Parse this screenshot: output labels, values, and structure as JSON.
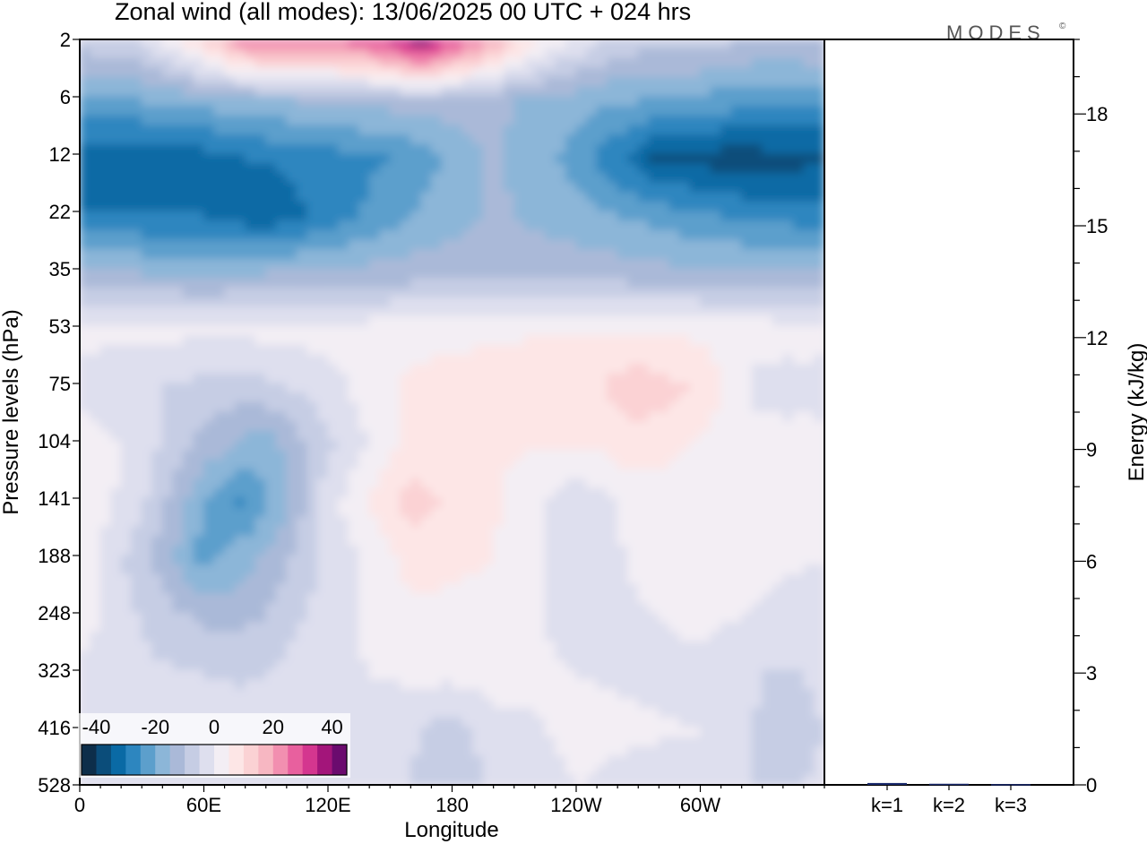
{
  "chart_data": {
    "type": "heatmap",
    "title": "Zonal wind (all modes):  13/06/2025  00 UTC  + 024 hrs",
    "brand": "MODES",
    "brand_mark": "©",
    "xlabel": "Longitude",
    "ylabel": "Pressure levels (hPa)",
    "x_ticks": [
      "0",
      "60E",
      "120E",
      "180",
      "120W",
      "60W"
    ],
    "x_tick_values": [
      0,
      60,
      120,
      180,
      240,
      300
    ],
    "x_range": [
      0,
      360
    ],
    "y_ticks": [
      "2",
      "6",
      "12",
      "22",
      "35",
      "53",
      "75",
      "104",
      "141",
      "188",
      "248",
      "323",
      "416",
      "528"
    ],
    "colorbar": {
      "labels": [
        "-40",
        "-20",
        "0",
        "20",
        "40"
      ],
      "label_values": [
        -40,
        -20,
        0,
        20,
        40
      ],
      "levels": [
        -45,
        -40,
        -35,
        -30,
        -25,
        -20,
        -15,
        -10,
        -5,
        0,
        5,
        10,
        15,
        20,
        25,
        30,
        35,
        40,
        45
      ],
      "colors": [
        "#0d2e4a",
        "#0b4d7a",
        "#0a6aa5",
        "#2d86bf",
        "#5c9fcc",
        "#8cb6d8",
        "#aab9d8",
        "#c6cde4",
        "#dedfee",
        "#f3eef4",
        "#fde6e6",
        "#fbd2d4",
        "#f7b7c2",
        "#f28fb0",
        "#e8609e",
        "#d4368f",
        "#a3157a",
        "#6b0b6e"
      ]
    },
    "energy_axis": {
      "label": "Energy (kJ/kg)",
      "ticks": [
        "0",
        "3",
        "6",
        "9",
        "12",
        "15",
        "18"
      ],
      "tick_values": [
        0,
        3,
        6,
        9,
        12,
        15,
        18
      ],
      "range": [
        0,
        20
      ],
      "categories": [
        "k=1",
        "k=2",
        "k=3"
      ],
      "values": [
        0.05,
        0.03,
        0.02
      ]
    },
    "wind_field_approx": [
      {
        "level": "2",
        "lon_values": [
          [
            0,
            -8
          ],
          [
            30,
            -5
          ],
          [
            60,
            10
          ],
          [
            80,
            22
          ],
          [
            100,
            25
          ],
          [
            120,
            22
          ],
          [
            150,
            30
          ],
          [
            165,
            38
          ],
          [
            180,
            28
          ],
          [
            200,
            18
          ],
          [
            220,
            5
          ],
          [
            260,
            -8
          ],
          [
            300,
            -8
          ],
          [
            330,
            -12
          ],
          [
            360,
            -10
          ]
        ]
      },
      {
        "level": "6",
        "lon_values": [
          [
            0,
            -22
          ],
          [
            60,
            -18
          ],
          [
            120,
            -14
          ],
          [
            180,
            -12
          ],
          [
            240,
            -18
          ],
          [
            300,
            -22
          ],
          [
            360,
            -24
          ]
        ]
      },
      {
        "level": "12",
        "lon_values": [
          [
            0,
            -34
          ],
          [
            40,
            -35
          ],
          [
            80,
            -30
          ],
          [
            120,
            -28
          ],
          [
            160,
            -24
          ],
          [
            200,
            -14
          ],
          [
            240,
            -22
          ],
          [
            280,
            -36
          ],
          [
            320,
            -38
          ],
          [
            360,
            -36
          ]
        ]
      },
      {
        "level": "22",
        "lon_values": [
          [
            0,
            -30
          ],
          [
            60,
            -30
          ],
          [
            90,
            -34
          ],
          [
            120,
            -28
          ],
          [
            160,
            -20
          ],
          [
            200,
            -14
          ],
          [
            240,
            -18
          ],
          [
            280,
            -22
          ],
          [
            320,
            -26
          ],
          [
            360,
            -28
          ]
        ]
      },
      {
        "level": "35",
        "lon_values": [
          [
            0,
            -14
          ],
          [
            60,
            -16
          ],
          [
            120,
            -14
          ],
          [
            180,
            -12
          ],
          [
            240,
            -12
          ],
          [
            300,
            -14
          ],
          [
            360,
            -14
          ]
        ]
      },
      {
        "level": "53",
        "lon_values": [
          [
            0,
            2
          ],
          [
            60,
            1
          ],
          [
            120,
            2
          ],
          [
            180,
            4
          ],
          [
            240,
            5
          ],
          [
            300,
            4
          ],
          [
            360,
            2
          ]
        ]
      },
      {
        "level": "75",
        "lon_values": [
          [
            0,
            -3
          ],
          [
            40,
            -5
          ],
          [
            80,
            -8
          ],
          [
            120,
            -2
          ],
          [
            160,
            6
          ],
          [
            200,
            7
          ],
          [
            240,
            7
          ],
          [
            270,
            14
          ],
          [
            300,
            9
          ],
          [
            330,
            -3
          ],
          [
            360,
            -2
          ]
        ]
      },
      {
        "level": "104",
        "lon_values": [
          [
            0,
            4
          ],
          [
            30,
            -2
          ],
          [
            60,
            -12
          ],
          [
            90,
            -18
          ],
          [
            120,
            -6
          ],
          [
            160,
            7
          ],
          [
            200,
            6
          ],
          [
            240,
            5
          ],
          [
            270,
            8
          ],
          [
            300,
            4
          ],
          [
            360,
            2
          ]
        ]
      },
      {
        "level": "141",
        "lon_values": [
          [
            0,
            5
          ],
          [
            30,
            -4
          ],
          [
            60,
            -20
          ],
          [
            80,
            -26
          ],
          [
            100,
            -16
          ],
          [
            120,
            -2
          ],
          [
            160,
            12
          ],
          [
            200,
            6
          ],
          [
            240,
            -4
          ],
          [
            270,
            2
          ],
          [
            300,
            4
          ],
          [
            360,
            1
          ]
        ]
      },
      {
        "level": "188",
        "lon_values": [
          [
            0,
            3
          ],
          [
            40,
            -12
          ],
          [
            60,
            -22
          ],
          [
            90,
            -14
          ],
          [
            120,
            -4
          ],
          [
            160,
            7
          ],
          [
            200,
            5
          ],
          [
            240,
            -3
          ],
          [
            280,
            2
          ],
          [
            360,
            0
          ]
        ]
      },
      {
        "level": "248",
        "lon_values": [
          [
            0,
            3
          ],
          [
            40,
            -8
          ],
          [
            70,
            -12
          ],
          [
            90,
            -10
          ],
          [
            120,
            -2
          ],
          [
            160,
            4
          ],
          [
            200,
            3
          ],
          [
            240,
            -2
          ],
          [
            300,
            1
          ],
          [
            360,
            -2
          ]
        ]
      },
      {
        "level": "323",
        "lon_values": [
          [
            0,
            -2
          ],
          [
            40,
            -4
          ],
          [
            80,
            -6
          ],
          [
            120,
            -1
          ],
          [
            160,
            1
          ],
          [
            200,
            2
          ],
          [
            240,
            0
          ],
          [
            300,
            -1
          ],
          [
            340,
            -6
          ],
          [
            360,
            -4
          ]
        ]
      },
      {
        "level": "416",
        "lon_values": [
          [
            0,
            -3
          ],
          [
            60,
            -1
          ],
          [
            120,
            0
          ],
          [
            160,
            -4
          ],
          [
            180,
            -8
          ],
          [
            200,
            -2
          ],
          [
            240,
            1
          ],
          [
            300,
            0
          ],
          [
            340,
            -8
          ],
          [
            360,
            -5
          ]
        ]
      },
      {
        "level": "528",
        "lon_values": [
          [
            0,
            -4
          ],
          [
            60,
            -2
          ],
          [
            120,
            -3
          ],
          [
            160,
            -5
          ],
          [
            180,
            -10
          ],
          [
            200,
            -4
          ],
          [
            240,
            0
          ],
          [
            300,
            -3
          ],
          [
            340,
            -6
          ],
          [
            360,
            -4
          ]
        ]
      }
    ]
  }
}
